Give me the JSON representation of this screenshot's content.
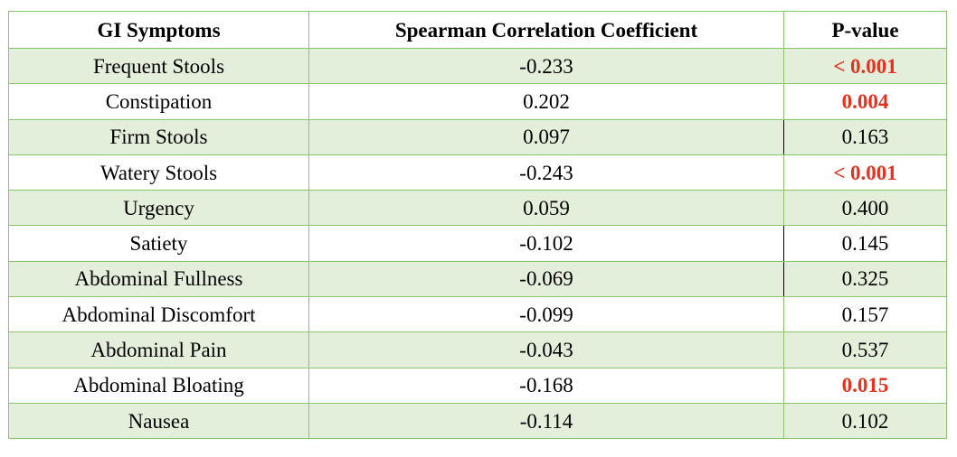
{
  "table": {
    "headers": [
      "GI Symptoms",
      "Spearman Correlation Coefficient",
      "P-value"
    ],
    "rows": [
      {
        "symptom": "Frequent Stools",
        "coefficient": "-0.233",
        "p_value": "< 0.001",
        "significant": true
      },
      {
        "symptom": "Constipation",
        "coefficient": "0.202",
        "p_value": "0.004",
        "significant": true
      },
      {
        "symptom": "Firm Stools",
        "coefficient": "0.097",
        "p_value": "0.163",
        "significant": false
      },
      {
        "symptom": "Watery Stools",
        "coefficient": "-0.243",
        "p_value": "< 0.001",
        "significant": true
      },
      {
        "symptom": "Urgency",
        "coefficient": "0.059",
        "p_value": "0.400",
        "significant": false
      },
      {
        "symptom": "Satiety",
        "coefficient": "-0.102",
        "p_value": "0.145",
        "significant": false
      },
      {
        "symptom": "Abdominal Fullness",
        "coefficient": "-0.069",
        "p_value": "0.325",
        "significant": false
      },
      {
        "symptom": "Abdominal Discomfort",
        "coefficient": "-0.099",
        "p_value": "0.157",
        "significant": false
      },
      {
        "symptom": "Abdominal Pain",
        "coefficient": "-0.043",
        "p_value": "0.537",
        "significant": false
      },
      {
        "symptom": "Abdominal Bloating",
        "coefficient": "-0.168",
        "p_value": "0.015",
        "significant": true
      },
      {
        "symptom": "Nausea",
        "coefficient": "-0.114",
        "p_value": "0.102",
        "significant": false
      }
    ]
  },
  "colors": {
    "border": "#8cc46b",
    "shaded_row": "#e3eedb",
    "significant_text": "#e8301e"
  }
}
